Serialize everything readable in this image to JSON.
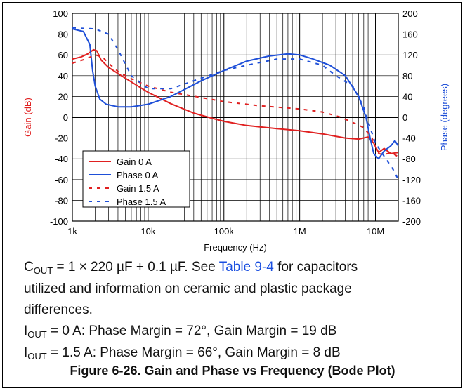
{
  "chart_data": {
    "type": "line",
    "xlabel": "Frequency (Hz)",
    "ylabel_left": "Gain (dB)",
    "ylabel_right": "Phase (degrees)",
    "xscale": "log",
    "xlim": [
      1000,
      20000000
    ],
    "ylim_left": [
      -100,
      100
    ],
    "ylim_right": [
      -200,
      200
    ],
    "x_ticks": [
      {
        "value": 1000,
        "label": "1k"
      },
      {
        "value": 10000,
        "label": "10k"
      },
      {
        "value": 100000,
        "label": "100k"
      },
      {
        "value": 1000000,
        "label": "1M"
      },
      {
        "value": 10000000,
        "label": "10M"
      }
    ],
    "y_ticks_left": [
      "100",
      "80",
      "60",
      "40",
      "20",
      "0",
      "-20",
      "-40",
      "-60",
      "-80",
      "-100"
    ],
    "y_ticks_right": [
      "200",
      "160",
      "120",
      "80",
      "40",
      "0",
      "-40",
      "-80",
      "-120",
      "-160",
      "-200"
    ],
    "grid": true,
    "legend_position": "bottom-left",
    "series": [
      {
        "name": "Gain 0 A",
        "axis": "left",
        "color": "#e02020",
        "style": "solid",
        "x": [
          1000,
          1300,
          1600,
          1900,
          2100,
          2400,
          3000,
          4000,
          6000,
          10000,
          20000,
          40000,
          70000,
          100000,
          200000,
          500000,
          1000000,
          2000000,
          4000000,
          6000000,
          8000000,
          9500000,
          11000000,
          13000000,
          16000000,
          20000000
        ],
        "y": [
          56,
          58,
          61,
          65,
          64,
          55,
          48,
          42,
          34,
          24,
          13,
          4,
          -1,
          -4,
          -8,
          -11,
          -13,
          -16,
          -20,
          -21,
          -19,
          -25,
          -34,
          -30,
          -35,
          -34
        ]
      },
      {
        "name": "Phase 0 A",
        "axis": "right",
        "color": "#1e4fd8",
        "style": "solid",
        "x": [
          1000,
          1400,
          1700,
          1850,
          2000,
          2300,
          2800,
          4000,
          6000,
          10000,
          20000,
          50000,
          100000,
          200000,
          400000,
          700000,
          1000000,
          1500000,
          2500000,
          4000000,
          6000000,
          7500000,
          8500000,
          9500000,
          11000000,
          13000000,
          16000000,
          18000000,
          20000000
        ],
        "y": [
          170,
          165,
          140,
          90,
          60,
          35,
          25,
          20,
          20,
          25,
          40,
          70,
          90,
          108,
          118,
          122,
          120,
          112,
          100,
          80,
          40,
          0,
          -40,
          -70,
          -80,
          -65,
          -55,
          -45,
          -55
        ]
      },
      {
        "name": "Gain 1.5 A",
        "axis": "left",
        "color": "#e02020",
        "style": "dashed",
        "x": [
          1000,
          1500,
          2000,
          2500,
          3000,
          4000,
          6000,
          10000,
          20000,
          50000,
          100000,
          300000,
          1000000,
          2000000,
          3500000,
          5000000,
          7000000,
          9000000,
          11000000,
          13000000,
          16000000,
          20000000
        ],
        "y": [
          52,
          56,
          60,
          58,
          52,
          44,
          37,
          30,
          24,
          19,
          15,
          11,
          8,
          5,
          0,
          -5,
          -10,
          -20,
          -35,
          -36,
          -34,
          -38
        ]
      },
      {
        "name": "Phase 1.5 A",
        "axis": "right",
        "color": "#1e4fd8",
        "style": "dashed",
        "x": [
          1000,
          2000,
          3000,
          4000,
          6000,
          10000,
          20000,
          50000,
          100000,
          200000,
          500000,
          1000000,
          2000000,
          3000000,
          5000000,
          7000000,
          8500000,
          10000000,
          13000000,
          17000000,
          20000000
        ],
        "y": [
          172,
          170,
          160,
          130,
          80,
          55,
          55,
          75,
          90,
          100,
          112,
          112,
          100,
          80,
          60,
          20,
          -20,
          -50,
          -75,
          -100,
          -120
        ]
      }
    ]
  },
  "caption": {
    "line1_pre": "C",
    "line1_sub": "OUT",
    "line1_mid": " = 1 × 220 µF + 0.1 µF. See ",
    "line1_link": "Table 9-4",
    "line1_post": " for capacitors",
    "line2": "utilized and information on ceramic and plastic package",
    "line3": "differences.",
    "line4_pre": "I",
    "line4_sub": "OUT",
    "line4_post": " = 0 A: Phase Margin = 72°, Gain Margin = 19 dB",
    "line5_pre": "I",
    "line5_sub": "OUT",
    "line5_post": " = 1.5 A: Phase Margin = 66°, Gain Margin = 8 dB"
  },
  "figure_title": "Figure 6-26. Gain and Phase vs Frequency (Bode Plot)"
}
